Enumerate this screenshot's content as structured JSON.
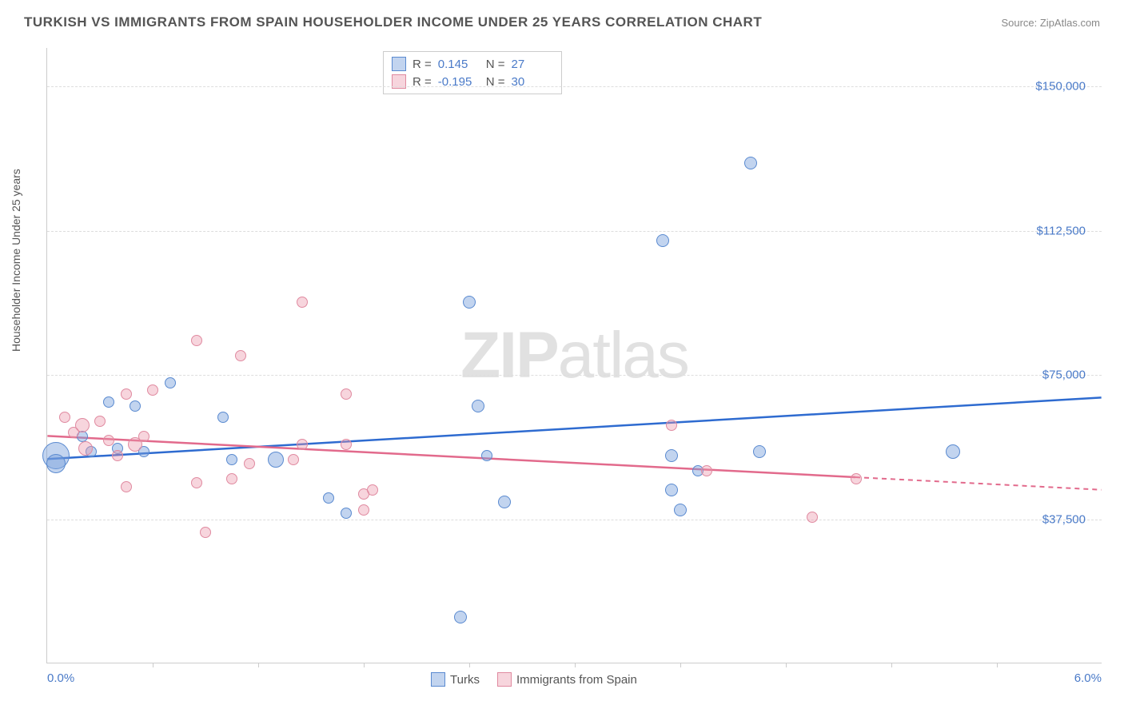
{
  "title": "TURKISH VS IMMIGRANTS FROM SPAIN HOUSEHOLDER INCOME UNDER 25 YEARS CORRELATION CHART",
  "source": "Source: ZipAtlas.com",
  "watermark_a": "ZIP",
  "watermark_b": "atlas",
  "ylabel": "Householder Income Under 25 years",
  "chart": {
    "type": "scatter",
    "xlim": [
      0,
      6
    ],
    "ylim": [
      0,
      160000
    ],
    "xaxis_left": "0.0%",
    "xaxis_right": "6.0%",
    "yticks": [
      {
        "v": 37500,
        "label": "$37,500"
      },
      {
        "v": 75000,
        "label": "$75,000"
      },
      {
        "v": 112500,
        "label": "$112,500"
      },
      {
        "v": 150000,
        "label": "$150,000"
      }
    ],
    "xticks": [
      0.6,
      1.2,
      1.8,
      2.4,
      3.0,
      3.6,
      4.2,
      4.8,
      5.4
    ],
    "background": "#ffffff",
    "grid_color": "#dddddd",
    "series": [
      {
        "name": "Turks",
        "fill": "rgba(120,160,220,0.45)",
        "stroke": "#5a8ad0",
        "line_color": "#2e6bd0",
        "trend_y0": 53000,
        "trend_y1": 69000,
        "trend_dash": false,
        "points": [
          {
            "x": 0.05,
            "y": 54000,
            "r": 17
          },
          {
            "x": 0.05,
            "y": 52000,
            "r": 12
          },
          {
            "x": 0.2,
            "y": 59000,
            "r": 7
          },
          {
            "x": 0.25,
            "y": 55000,
            "r": 7
          },
          {
            "x": 0.35,
            "y": 68000,
            "r": 7
          },
          {
            "x": 0.4,
            "y": 56000,
            "r": 7
          },
          {
            "x": 0.5,
            "y": 67000,
            "r": 7
          },
          {
            "x": 0.55,
            "y": 55000,
            "r": 7
          },
          {
            "x": 0.7,
            "y": 73000,
            "r": 7
          },
          {
            "x": 1.0,
            "y": 64000,
            "r": 7
          },
          {
            "x": 1.05,
            "y": 53000,
            "r": 7
          },
          {
            "x": 1.3,
            "y": 53000,
            "r": 10
          },
          {
            "x": 1.6,
            "y": 43000,
            "r": 7
          },
          {
            "x": 1.7,
            "y": 39000,
            "r": 7
          },
          {
            "x": 2.4,
            "y": 94000,
            "r": 8
          },
          {
            "x": 2.45,
            "y": 67000,
            "r": 8
          },
          {
            "x": 2.5,
            "y": 54000,
            "r": 7
          },
          {
            "x": 2.6,
            "y": 42000,
            "r": 8
          },
          {
            "x": 2.35,
            "y": 12000,
            "r": 8
          },
          {
            "x": 3.5,
            "y": 110000,
            "r": 8
          },
          {
            "x": 3.55,
            "y": 54000,
            "r": 8
          },
          {
            "x": 3.55,
            "y": 45000,
            "r": 8
          },
          {
            "x": 3.6,
            "y": 40000,
            "r": 8
          },
          {
            "x": 4.0,
            "y": 130000,
            "r": 8
          },
          {
            "x": 4.05,
            "y": 55000,
            "r": 8
          },
          {
            "x": 5.15,
            "y": 55000,
            "r": 9
          },
          {
            "x": 3.7,
            "y": 50000,
            "r": 7
          }
        ]
      },
      {
        "name": "Immigrants from Spain",
        "fill": "rgba(235,150,170,0.40)",
        "stroke": "#e08aa0",
        "line_color": "#e26a8c",
        "trend_y0": 59000,
        "trend_y1": 45000,
        "trend_dash_from": 4.6,
        "points": [
          {
            "x": 0.1,
            "y": 64000,
            "r": 7
          },
          {
            "x": 0.15,
            "y": 60000,
            "r": 7
          },
          {
            "x": 0.2,
            "y": 62000,
            "r": 9
          },
          {
            "x": 0.22,
            "y": 56000,
            "r": 9
          },
          {
            "x": 0.3,
            "y": 63000,
            "r": 7
          },
          {
            "x": 0.35,
            "y": 58000,
            "r": 7
          },
          {
            "x": 0.4,
            "y": 54000,
            "r": 7
          },
          {
            "x": 0.45,
            "y": 70000,
            "r": 7
          },
          {
            "x": 0.5,
            "y": 57000,
            "r": 9
          },
          {
            "x": 0.55,
            "y": 59000,
            "r": 7
          },
          {
            "x": 0.45,
            "y": 46000,
            "r": 7
          },
          {
            "x": 0.6,
            "y": 71000,
            "r": 7
          },
          {
            "x": 0.85,
            "y": 47000,
            "r": 7
          },
          {
            "x": 0.85,
            "y": 84000,
            "r": 7
          },
          {
            "x": 0.9,
            "y": 34000,
            "r": 7
          },
          {
            "x": 1.05,
            "y": 48000,
            "r": 7
          },
          {
            "x": 1.1,
            "y": 80000,
            "r": 7
          },
          {
            "x": 1.15,
            "y": 52000,
            "r": 7
          },
          {
            "x": 1.4,
            "y": 53000,
            "r": 7
          },
          {
            "x": 1.45,
            "y": 94000,
            "r": 7
          },
          {
            "x": 1.45,
            "y": 57000,
            "r": 7
          },
          {
            "x": 1.7,
            "y": 70000,
            "r": 7
          },
          {
            "x": 1.7,
            "y": 57000,
            "r": 7
          },
          {
            "x": 1.8,
            "y": 44000,
            "r": 7
          },
          {
            "x": 1.8,
            "y": 40000,
            "r": 7
          },
          {
            "x": 1.85,
            "y": 45000,
            "r": 7
          },
          {
            "x": 3.55,
            "y": 62000,
            "r": 7
          },
          {
            "x": 3.75,
            "y": 50000,
            "r": 7
          },
          {
            "x": 4.35,
            "y": 38000,
            "r": 7
          },
          {
            "x": 4.6,
            "y": 48000,
            "r": 7
          }
        ]
      }
    ],
    "stats": [
      {
        "series": 0,
        "R": "0.145",
        "N": "27"
      },
      {
        "series": 1,
        "R": "-0.195",
        "N": "30"
      }
    ]
  }
}
